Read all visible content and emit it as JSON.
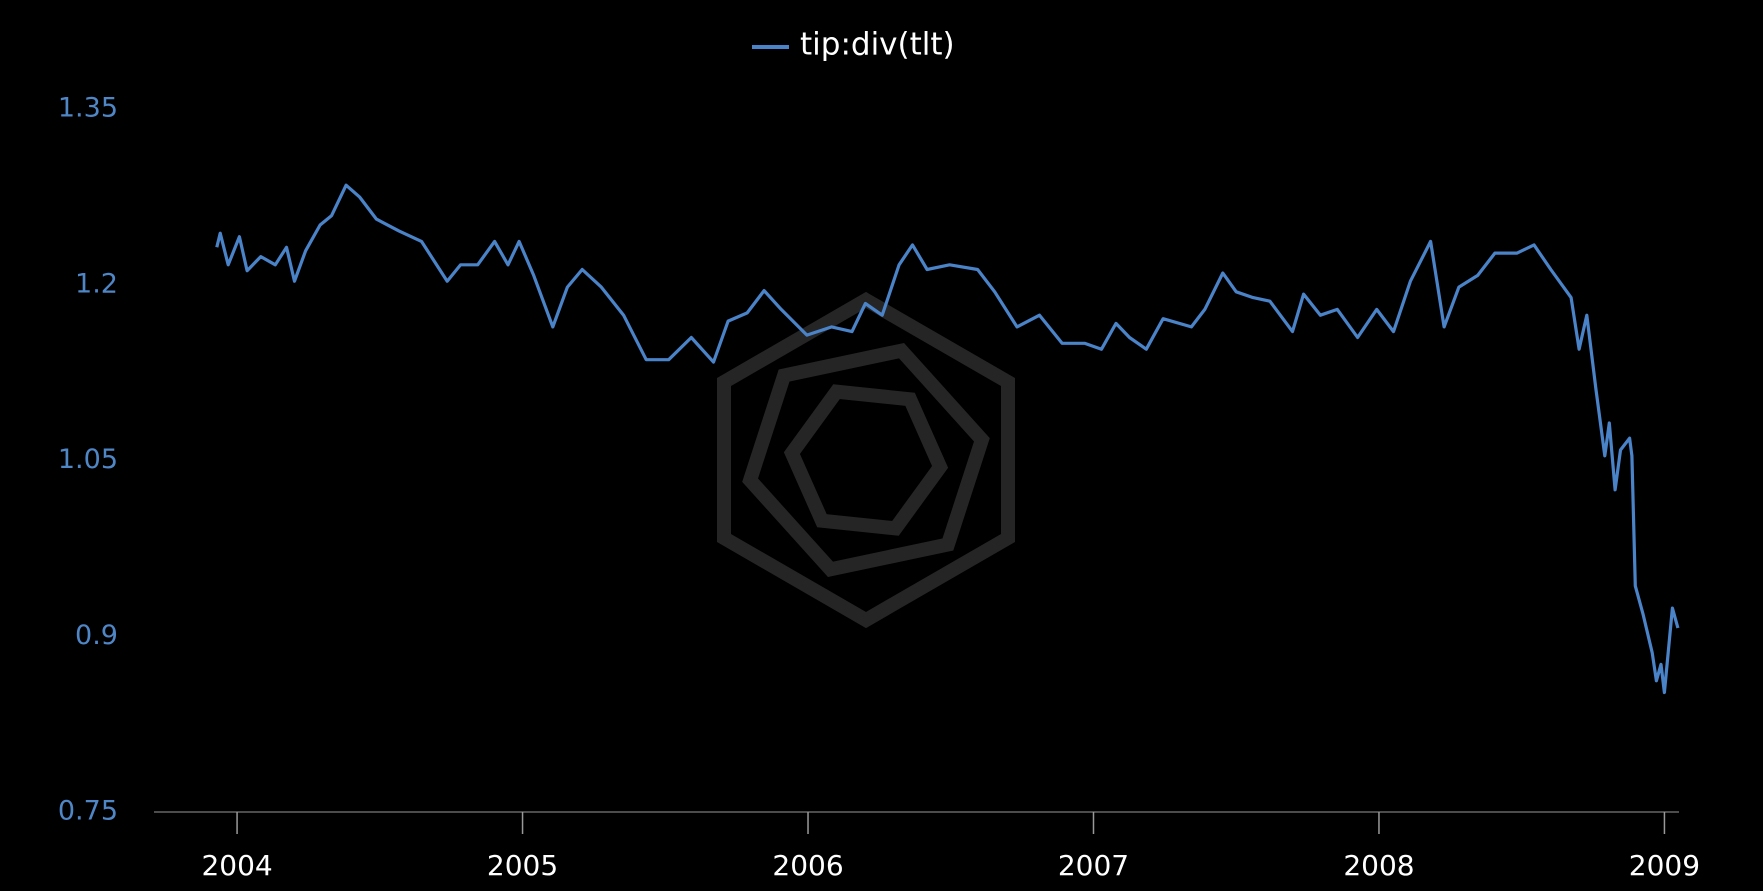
{
  "chart_data": {
    "type": "line",
    "series": [
      {
        "name": "tip:div(tlt)",
        "color": "#4a83c8",
        "x": [
          2003.929,
          2003.941,
          2003.969,
          2004.008,
          2004.035,
          2004.083,
          2004.134,
          2004.173,
          2004.201,
          2004.24,
          2004.291,
          2004.331,
          2004.382,
          2004.429,
          2004.488,
          2004.567,
          2004.646,
          2004.736,
          2004.783,
          2004.843,
          2004.902,
          2004.949,
          2004.988,
          2005.039,
          2005.106,
          2005.157,
          2005.209,
          2005.276,
          2005.354,
          2005.433,
          2005.512,
          2005.591,
          2005.669,
          2005.72,
          2005.787,
          2005.846,
          2005.906,
          2005.996,
          2006.083,
          2006.154,
          2006.201,
          2006.26,
          2006.319,
          2006.366,
          2006.417,
          2006.496,
          2006.594,
          2006.654,
          2006.732,
          2006.811,
          2006.89,
          2006.969,
          2007.028,
          2007.079,
          2007.126,
          2007.185,
          2007.244,
          2007.343,
          2007.39,
          2007.453,
          2007.5,
          2007.559,
          2007.618,
          2007.697,
          2007.736,
          2007.795,
          2007.854,
          2007.925,
          2007.992,
          2008.051,
          2008.11,
          2008.181,
          2008.228,
          2008.28,
          2008.346,
          2008.406,
          2008.484,
          2008.543,
          2008.602,
          2008.673,
          2008.701,
          2008.728,
          2008.76,
          2008.791,
          2008.807,
          2008.827,
          2008.846,
          2008.878,
          2008.886,
          2008.898,
          2008.925,
          2008.957,
          2008.972,
          2008.988,
          2009.0,
          2009.028,
          2009.047
        ],
        "values": [
          1.232,
          1.244,
          1.217,
          1.241,
          1.212,
          1.224,
          1.217,
          1.232,
          1.203,
          1.229,
          1.251,
          1.259,
          1.285,
          1.275,
          1.256,
          1.246,
          1.237,
          1.203,
          1.217,
          1.217,
          1.237,
          1.217,
          1.237,
          1.208,
          1.164,
          1.198,
          1.213,
          1.198,
          1.174,
          1.136,
          1.136,
          1.155,
          1.134,
          1.169,
          1.176,
          1.195,
          1.179,
          1.157,
          1.164,
          1.16,
          1.184,
          1.174,
          1.217,
          1.234,
          1.213,
          1.217,
          1.213,
          1.194,
          1.164,
          1.174,
          1.15,
          1.15,
          1.145,
          1.167,
          1.155,
          1.145,
          1.171,
          1.164,
          1.179,
          1.21,
          1.194,
          1.189,
          1.186,
          1.16,
          1.192,
          1.174,
          1.179,
          1.155,
          1.179,
          1.16,
          1.203,
          1.237,
          1.164,
          1.198,
          1.208,
          1.227,
          1.227,
          1.234,
          1.213,
          1.189,
          1.145,
          1.174,
          1.111,
          1.054,
          1.082,
          1.025,
          1.059,
          1.069,
          1.054,
          0.943,
          0.919,
          0.886,
          0.862,
          0.876,
          0.852,
          0.924,
          0.907
        ]
      }
    ],
    "xlim": [
      2003.709,
      2009.051
    ],
    "xticks": [
      2004,
      2005,
      2006,
      2007,
      2008,
      2009
    ],
    "ylim": [
      0.75,
      1.35
    ],
    "yticks": [
      0.75,
      0.9,
      1.05,
      1.2,
      1.35
    ]
  }
}
